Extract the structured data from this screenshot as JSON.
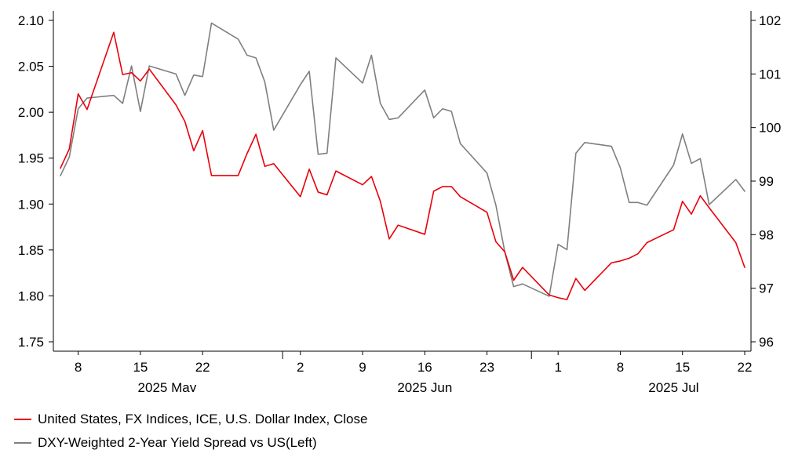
{
  "chart_data": {
    "type": "line",
    "x": [
      "2025-05-06",
      "2025-05-07",
      "2025-05-08",
      "2025-05-09",
      "2025-05-12",
      "2025-05-13",
      "2025-05-14",
      "2025-05-15",
      "2025-05-16",
      "2025-05-19",
      "2025-05-20",
      "2025-05-21",
      "2025-05-22",
      "2025-05-23",
      "2025-05-26",
      "2025-05-27",
      "2025-05-28",
      "2025-05-29",
      "2025-05-30",
      "2025-06-02",
      "2025-06-03",
      "2025-06-04",
      "2025-06-05",
      "2025-06-06",
      "2025-06-09",
      "2025-06-10",
      "2025-06-11",
      "2025-06-12",
      "2025-06-13",
      "2025-06-16",
      "2025-06-17",
      "2025-06-18",
      "2025-06-19",
      "2025-06-20",
      "2025-06-23",
      "2025-06-24",
      "2025-06-25",
      "2025-06-26",
      "2025-06-27",
      "2025-06-30",
      "2025-07-01",
      "2025-07-02",
      "2025-07-03",
      "2025-07-04",
      "2025-07-07",
      "2025-07-08",
      "2025-07-09",
      "2025-07-10",
      "2025-07-11",
      "2025-07-14",
      "2025-07-15",
      "2025-07-16",
      "2025-07-17",
      "2025-07-18",
      "2025-07-21",
      "2025-07-22"
    ],
    "series": [
      {
        "name": "United States, FX Indices, ICE, U.S. Dollar Index, Close",
        "color": "#e8000b",
        "axis": "left",
        "values": [
          1.939,
          1.96,
          2.02,
          2.003,
          2.087,
          2.041,
          2.043,
          2.034,
          2.047,
          2.008,
          1.99,
          1.958,
          1.98,
          1.931,
          1.931,
          1.955,
          1.976,
          1.941,
          1.944,
          1.908,
          1.938,
          1.913,
          1.91,
          1.936,
          1.921,
          1.93,
          1.903,
          1.862,
          1.877,
          1.867,
          1.914,
          1.919,
          1.919,
          1.908,
          1.891,
          1.859,
          1.848,
          1.817,
          1.831,
          1.801,
          1.798,
          1.796,
          1.819,
          1.806,
          1.836,
          1.838,
          1.841,
          1.846,
          1.858,
          1.872,
          1.903,
          1.889,
          1.909,
          1.896,
          1.858,
          1.831
        ]
      },
      {
        "name": "DXY-Weighted 2-Year Yield Spread vs US(Left)",
        "color": "#7f7f7f",
        "axis": "right",
        "values": [
          99.1,
          99.45,
          100.35,
          100.55,
          100.6,
          100.45,
          101.15,
          100.3,
          101.15,
          101.0,
          100.6,
          100.98,
          100.95,
          101.95,
          101.65,
          101.35,
          101.3,
          100.85,
          99.95,
          100.8,
          101.05,
          99.5,
          99.52,
          101.3,
          100.83,
          101.35,
          100.45,
          100.15,
          100.18,
          100.7,
          100.18,
          100.35,
          100.3,
          99.7,
          99.15,
          98.55,
          97.68,
          97.03,
          97.08,
          96.85,
          97.82,
          97.72,
          99.52,
          99.72,
          99.65,
          99.25,
          98.6,
          98.6,
          98.55,
          99.3,
          99.88,
          99.33,
          99.42,
          98.56,
          99.03,
          98.81
        ]
      }
    ],
    "ylim_left": [
      1.75,
      2.1
    ],
    "ylim_right": [
      96,
      102
    ],
    "yticks_left": [
      "1.75",
      "1.80",
      "1.85",
      "1.90",
      "1.95",
      "2.00",
      "2.05",
      "2.10"
    ],
    "yticks_right": [
      "96",
      "97",
      "98",
      "99",
      "100",
      "101",
      "102"
    ],
    "xticks": [
      {
        "date": "2025-05-08",
        "label": "8"
      },
      {
        "date": "2025-05-15",
        "label": "15"
      },
      {
        "date": "2025-05-22",
        "label": "22"
      },
      {
        "date": "2025-06-02",
        "label": "2"
      },
      {
        "date": "2025-06-09",
        "label": "9"
      },
      {
        "date": "2025-06-16",
        "label": "16"
      },
      {
        "date": "2025-06-23",
        "label": "23"
      },
      {
        "date": "2025-07-01",
        "label": "1"
      },
      {
        "date": "2025-07-08",
        "label": "8"
      },
      {
        "date": "2025-07-15",
        "label": "15"
      },
      {
        "date": "2025-07-22",
        "label": "22"
      }
    ],
    "month_labels": [
      {
        "date": "2025-05-18",
        "label": "2025 May"
      },
      {
        "date": "2025-06-16",
        "label": "2025 Jun"
      },
      {
        "date": "2025-07-14",
        "label": "2025 Jul"
      }
    ],
    "title": "",
    "xlabel": "",
    "ylabel": "",
    "grid": false,
    "legend_position": "bottom-left"
  },
  "legend": {
    "items": [
      {
        "label": "United States, FX Indices, ICE, U.S. Dollar Index, Close",
        "color": "#e8000b"
      },
      {
        "label": "DXY-Weighted 2-Year Yield Spread vs US(Left)",
        "color": "#7f7f7f"
      }
    ]
  }
}
